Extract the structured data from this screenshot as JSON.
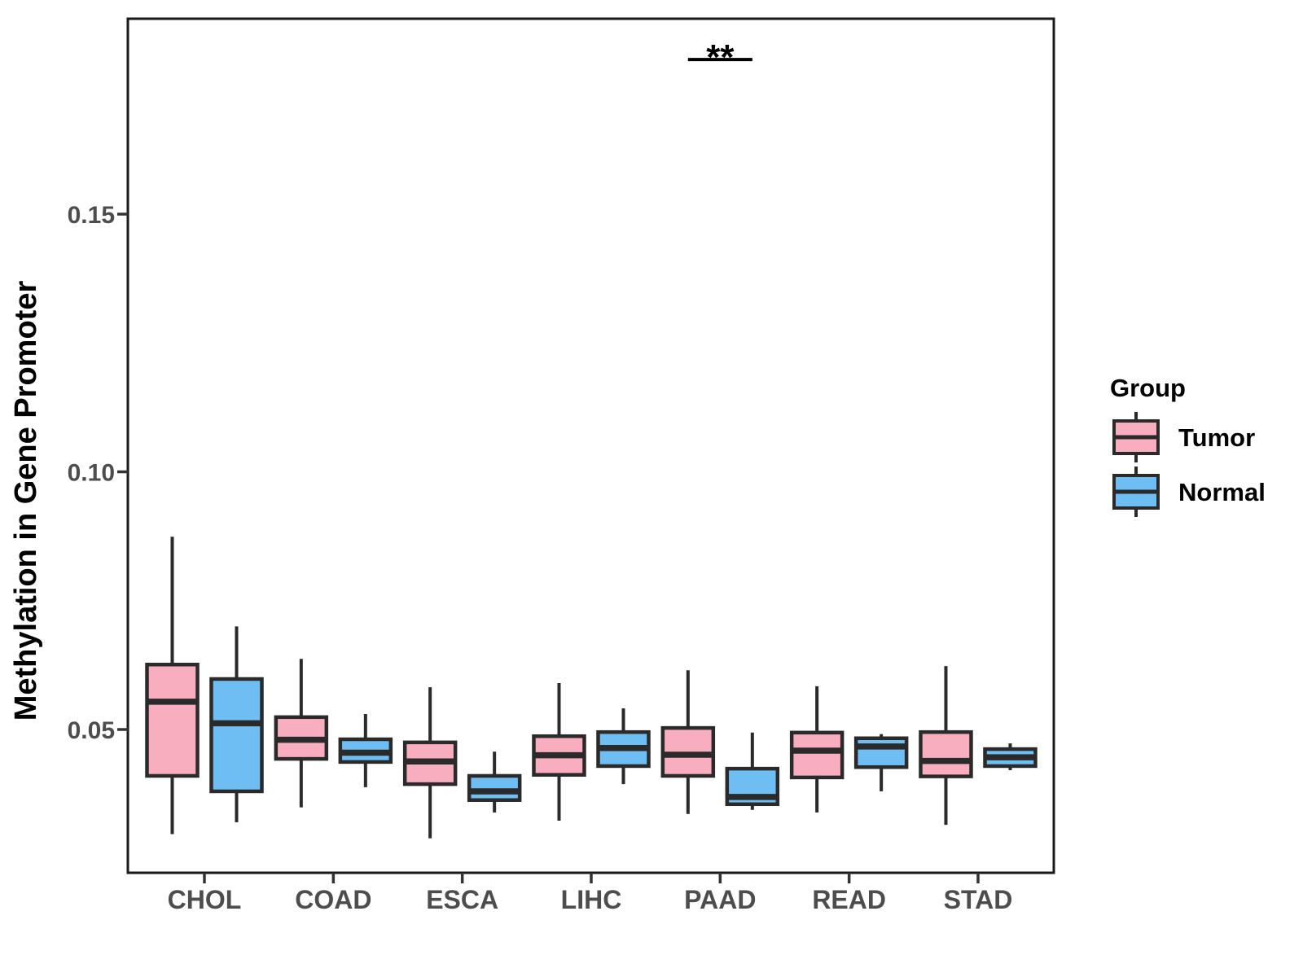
{
  "figure": {
    "background": "#FFFFFF"
  },
  "chart_data": {
    "type": "boxplot",
    "title": "",
    "xlabel": "",
    "ylabel": "Methylation in Gene Promoter",
    "categories": [
      "CHOL",
      "COAD",
      "ESCA",
      "LIHC",
      "PAAD",
      "READ",
      "STAD"
    ],
    "y_ticks": [
      0.05,
      0.1,
      0.15
    ],
    "ylim": [
      0.022,
      0.188
    ],
    "grid": false,
    "legend_position": "right",
    "series": [
      {
        "name": "Tumor",
        "color": "#F9AEC0",
        "boxes": [
          {
            "category": "CHOL",
            "min": 0.0297,
            "q1": 0.041,
            "median": 0.0554,
            "q3": 0.0626,
            "max": 0.0874
          },
          {
            "category": "COAD",
            "min": 0.0349,
            "q1": 0.0443,
            "median": 0.048,
            "q3": 0.0524,
            "max": 0.0637
          },
          {
            "category": "ESCA",
            "min": 0.0289,
            "q1": 0.0394,
            "median": 0.0438,
            "q3": 0.0475,
            "max": 0.0582
          },
          {
            "category": "LIHC",
            "min": 0.0323,
            "q1": 0.0412,
            "median": 0.045,
            "q3": 0.0487,
            "max": 0.059
          },
          {
            "category": "PAAD",
            "min": 0.0336,
            "q1": 0.041,
            "median": 0.0451,
            "q3": 0.0503,
            "max": 0.0615
          },
          {
            "category": "READ",
            "min": 0.0339,
            "q1": 0.0407,
            "median": 0.0459,
            "q3": 0.0494,
            "max": 0.0584
          },
          {
            "category": "STAD",
            "min": 0.0315,
            "q1": 0.0409,
            "median": 0.0439,
            "q3": 0.0495,
            "max": 0.0623
          }
        ]
      },
      {
        "name": "Normal",
        "color": "#6FBEF3",
        "boxes": [
          {
            "category": "CHOL",
            "min": 0.032,
            "q1": 0.038,
            "median": 0.0512,
            "q3": 0.0598,
            "max": 0.07
          },
          {
            "category": "COAD",
            "min": 0.0388,
            "q1": 0.0437,
            "median": 0.0455,
            "q3": 0.0481,
            "max": 0.053
          },
          {
            "category": "ESCA",
            "min": 0.0339,
            "q1": 0.0363,
            "median": 0.038,
            "q3": 0.041,
            "max": 0.0457
          },
          {
            "category": "LIHC",
            "min": 0.0394,
            "q1": 0.0429,
            "median": 0.0464,
            "q3": 0.0495,
            "max": 0.0541
          },
          {
            "category": "PAAD",
            "min": 0.0344,
            "q1": 0.0355,
            "median": 0.0369,
            "q3": 0.0424,
            "max": 0.0494
          },
          {
            "category": "READ",
            "min": 0.038,
            "q1": 0.0427,
            "median": 0.0467,
            "q3": 0.0483,
            "max": 0.0491
          },
          {
            "category": "STAD",
            "min": 0.0421,
            "q1": 0.0429,
            "median": 0.0446,
            "q3": 0.0462,
            "max": 0.0473
          }
        ]
      }
    ],
    "significance": {
      "category": "PAAD",
      "between": [
        "Tumor",
        "Normal"
      ],
      "label": "**",
      "y": 0.18
    },
    "style": {
      "box_border_color": "#2A2A2A",
      "panel_border_color": "#1A1A1A",
      "tick_color": "#333333",
      "tick_label_color": "#4D4D4D",
      "title_color": "#000000"
    }
  },
  "legend": {
    "title": "Group",
    "items": [
      {
        "label": "Tumor",
        "color": "#F9AEC0"
      },
      {
        "label": "Normal",
        "color": "#6FBEF3"
      }
    ]
  }
}
